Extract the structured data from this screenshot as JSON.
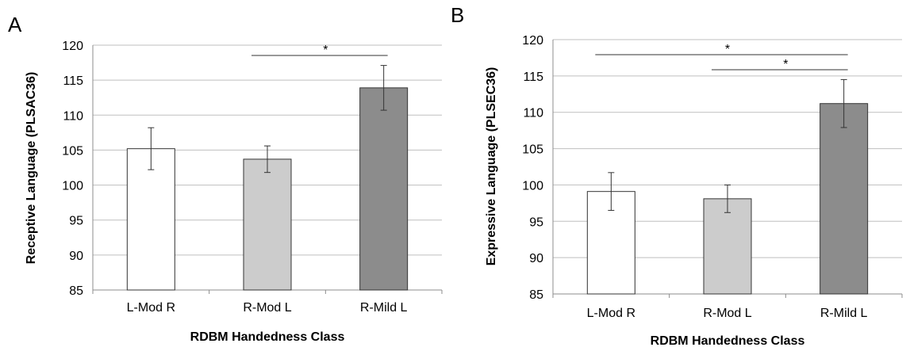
{
  "chart_data": [
    {
      "panel_label": "A",
      "type": "bar",
      "xlabel": "RDBM Handedness Class",
      "ylabel": "Receptive Language (PLSAC36)",
      "ylim": [
        85,
        120
      ],
      "yticks": [
        85,
        90,
        95,
        100,
        105,
        110,
        115,
        120
      ],
      "grid": true,
      "categories": [
        "L-Mod R",
        "R-Mod L",
        "R-Mild L"
      ],
      "values": [
        105.2,
        103.7,
        113.9
      ],
      "error": [
        3.0,
        1.9,
        3.2
      ],
      "bar_colors": [
        "#ffffff",
        "#cccccc",
        "#8c8c8c"
      ],
      "significance": [
        {
          "from": 1,
          "to": 2,
          "label": "*"
        }
      ]
    },
    {
      "panel_label": "B",
      "type": "bar",
      "xlabel": "RDBM Handedness Class",
      "ylabel": "Expressive Language (PLSEC36)",
      "ylim": [
        85,
        120
      ],
      "yticks": [
        85,
        90,
        95,
        100,
        105,
        110,
        115,
        120
      ],
      "grid": true,
      "categories": [
        "L-Mod R",
        "R-Mod L",
        "R-Mild L"
      ],
      "values": [
        99.1,
        98.1,
        111.2
      ],
      "error": [
        2.6,
        1.9,
        3.3
      ],
      "bar_colors": [
        "#ffffff",
        "#cccccc",
        "#8c8c8c"
      ],
      "significance": [
        {
          "from": 0,
          "to": 2,
          "label": "*"
        },
        {
          "from": 1,
          "to": 2,
          "label": "*"
        }
      ]
    }
  ]
}
